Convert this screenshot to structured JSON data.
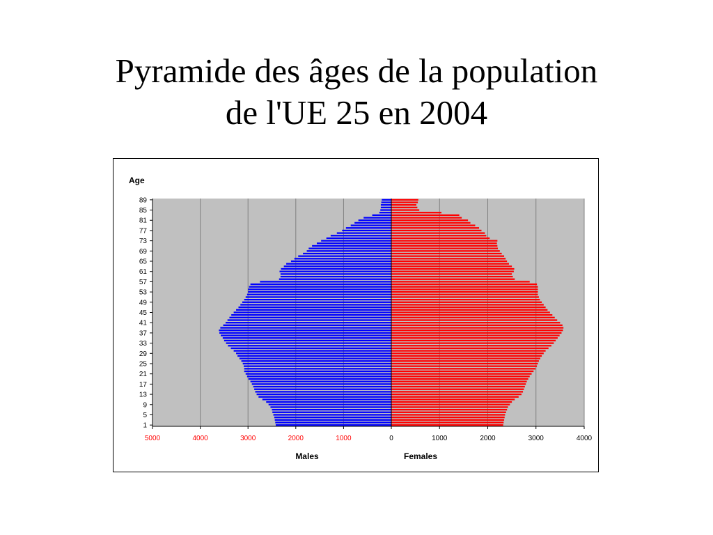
{
  "slide": {
    "title_line1": "Pyramide des âges de la population",
    "title_line2": "de l'UE 25 en 2004"
  },
  "chart_data": {
    "type": "bar",
    "orientation": "horizontal-pyramid",
    "ylabel": "Age",
    "xlabel_left": "Males",
    "xlabel_right": "Females",
    "x_tick_labels_left": [
      "5000",
      "4000",
      "3000",
      "2000",
      "1000"
    ],
    "x_tick_labels_right": [
      "0",
      "1000",
      "2000",
      "3000",
      "4000"
    ],
    "xlim_males": [
      0,
      5000
    ],
    "xlim_females": [
      0,
      4000
    ],
    "age_tick_labels": [
      "1",
      "5",
      "9",
      "13",
      "17",
      "21",
      "25",
      "29",
      "33",
      "37",
      "41",
      "45",
      "49",
      "53",
      "57",
      "61",
      "65",
      "69",
      "73",
      "77",
      "81",
      "85",
      "89"
    ],
    "ages_from": 1,
    "ages_to": 89,
    "grid": true,
    "colors": {
      "males": "#0000ff",
      "females": "#ff0000",
      "plot_bg": "#c0c0c0",
      "left_tick_text": "#ff0000"
    },
    "series": [
      {
        "name": "Males",
        "values": [
          2420,
          2430,
          2440,
          2450,
          2470,
          2490,
          2500,
          2530,
          2570,
          2620,
          2700,
          2780,
          2820,
          2850,
          2870,
          2890,
          2920,
          2950,
          2990,
          3020,
          3050,
          3080,
          3080,
          3090,
          3110,
          3140,
          3180,
          3220,
          3250,
          3300,
          3360,
          3420,
          3460,
          3500,
          3530,
          3570,
          3600,
          3610,
          3580,
          3520,
          3470,
          3430,
          3390,
          3350,
          3300,
          3250,
          3200,
          3160,
          3120,
          3080,
          3050,
          3020,
          3000,
          3000,
          2980,
          2950,
          2750,
          2350,
          2320,
          2320,
          2340,
          2310,
          2250,
          2200,
          2100,
          2030,
          1950,
          1850,
          1770,
          1730,
          1660,
          1560,
          1470,
          1360,
          1270,
          1140,
          1030,
          950,
          850,
          770,
          690,
          580,
          400,
          250,
          230,
          220,
          220,
          210,
          200
        ]
      },
      {
        "name": "Females",
        "values": [
          2320,
          2330,
          2340,
          2350,
          2360,
          2380,
          2400,
          2420,
          2460,
          2500,
          2560,
          2640,
          2700,
          2730,
          2750,
          2770,
          2790,
          2810,
          2840,
          2870,
          2910,
          2950,
          2990,
          3020,
          3040,
          3060,
          3090,
          3120,
          3160,
          3200,
          3260,
          3320,
          3370,
          3410,
          3450,
          3490,
          3530,
          3560,
          3570,
          3550,
          3500,
          3440,
          3390,
          3340,
          3290,
          3240,
          3200,
          3160,
          3120,
          3080,
          3060,
          3040,
          3040,
          3040,
          3040,
          3020,
          2870,
          2560,
          2520,
          2500,
          2540,
          2550,
          2500,
          2440,
          2400,
          2370,
          2340,
          2290,
          2250,
          2210,
          2200,
          2190,
          2200,
          2040,
          1970,
          1940,
          1870,
          1820,
          1740,
          1640,
          1590,
          1460,
          1410,
          1040,
          580,
          540,
          520,
          550,
          560
        ]
      }
    ]
  }
}
